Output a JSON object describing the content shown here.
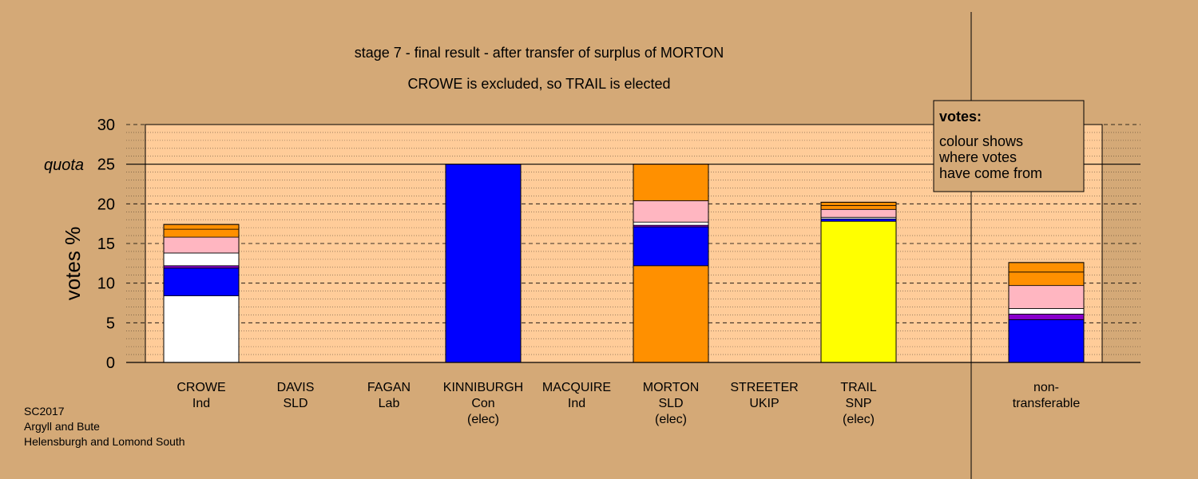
{
  "chart_data": {
    "type": "bar",
    "stacked": true,
    "title": "stage 7 - final result - after transfer of surplus of MORTON",
    "subtitle": "CROWE is excluded, so TRAIL is elected",
    "ylabel": "votes %",
    "ylim": [
      0,
      30
    ],
    "yticks": [
      "0",
      "5",
      "10",
      "15",
      "20",
      "25",
      "30"
    ],
    "quota_label": "quota",
    "quota": 25,
    "grid": true,
    "colors": {
      "background": "#d4a977",
      "plot": "#ffcc99",
      "own": "#ffffff",
      "con": "#0000ff",
      "purple": "#8800cc",
      "white": "#ffffff",
      "pink": "#ffb6c1",
      "orange": "#ff9000",
      "snp": "#ffff00",
      "sld": "#ff9000"
    },
    "categories": [
      {
        "name": "CROWE",
        "party": "Ind",
        "status": ""
      },
      {
        "name": "DAVIS",
        "party": "SLD",
        "status": ""
      },
      {
        "name": "FAGAN",
        "party": "Lab",
        "status": ""
      },
      {
        "name": "KINNIBURGH",
        "party": "Con",
        "status": "(elec)"
      },
      {
        "name": "MACQUIRE",
        "party": "Ind",
        "status": ""
      },
      {
        "name": "MORTON",
        "party": "SLD",
        "status": "(elec)"
      },
      {
        "name": "STREETER",
        "party": "UKIP",
        "status": ""
      },
      {
        "name": "TRAIL",
        "party": "SNP",
        "status": "(elec)"
      },
      {
        "name": "non-",
        "party": "transferable",
        "status": ""
      }
    ],
    "bars": [
      {
        "segments": [
          {
            "value": 8.4,
            "color": "#ffffff"
          },
          {
            "value": 3.5,
            "color": "#0000ff"
          },
          {
            "value": 0.3,
            "color": "#8800cc"
          },
          {
            "value": 1.6,
            "color": "#ffffff"
          },
          {
            "value": 2.0,
            "color": "#ffb6c1"
          },
          {
            "value": 1.0,
            "color": "#ff9000"
          },
          {
            "value": 0.6,
            "color": "#ff9000"
          }
        ]
      },
      {
        "segments": []
      },
      {
        "segments": []
      },
      {
        "segments": [
          {
            "value": 25.0,
            "color": "#0000ff"
          }
        ]
      },
      {
        "segments": []
      },
      {
        "segments": [
          {
            "value": 12.2,
            "color": "#ff9000"
          },
          {
            "value": 4.9,
            "color": "#0000ff"
          },
          {
            "value": 0.2,
            "color": "#8800cc"
          },
          {
            "value": 0.4,
            "color": "#ffffff"
          },
          {
            "value": 2.7,
            "color": "#ffb6c1"
          },
          {
            "value": 4.6,
            "color": "#ff9000"
          }
        ]
      },
      {
        "segments": []
      },
      {
        "segments": [
          {
            "value": 17.8,
            "color": "#ffff00"
          },
          {
            "value": 0.3,
            "color": "#0000ff"
          },
          {
            "value": 0.2,
            "color": "#ffffff"
          },
          {
            "value": 1.0,
            "color": "#ffb6c1"
          },
          {
            "value": 0.5,
            "color": "#ff9000"
          },
          {
            "value": 0.4,
            "color": "#ff9000"
          }
        ]
      },
      {
        "segments": [
          {
            "value": 5.4,
            "color": "#0000ff"
          },
          {
            "value": 0.7,
            "color": "#8800cc"
          },
          {
            "value": 0.7,
            "color": "#ffffff"
          },
          {
            "value": 2.9,
            "color": "#ffb6c1"
          },
          {
            "value": 1.7,
            "color": "#ff9000"
          },
          {
            "value": 1.2,
            "color": "#ff9000"
          }
        ]
      }
    ],
    "legend": {
      "title": "votes:",
      "lines": [
        "colour shows",
        "where votes",
        "have come from"
      ]
    }
  },
  "footer": {
    "lines": [
      "SC2017",
      "Argyll and Bute",
      "Helensburgh and Lomond South"
    ]
  }
}
